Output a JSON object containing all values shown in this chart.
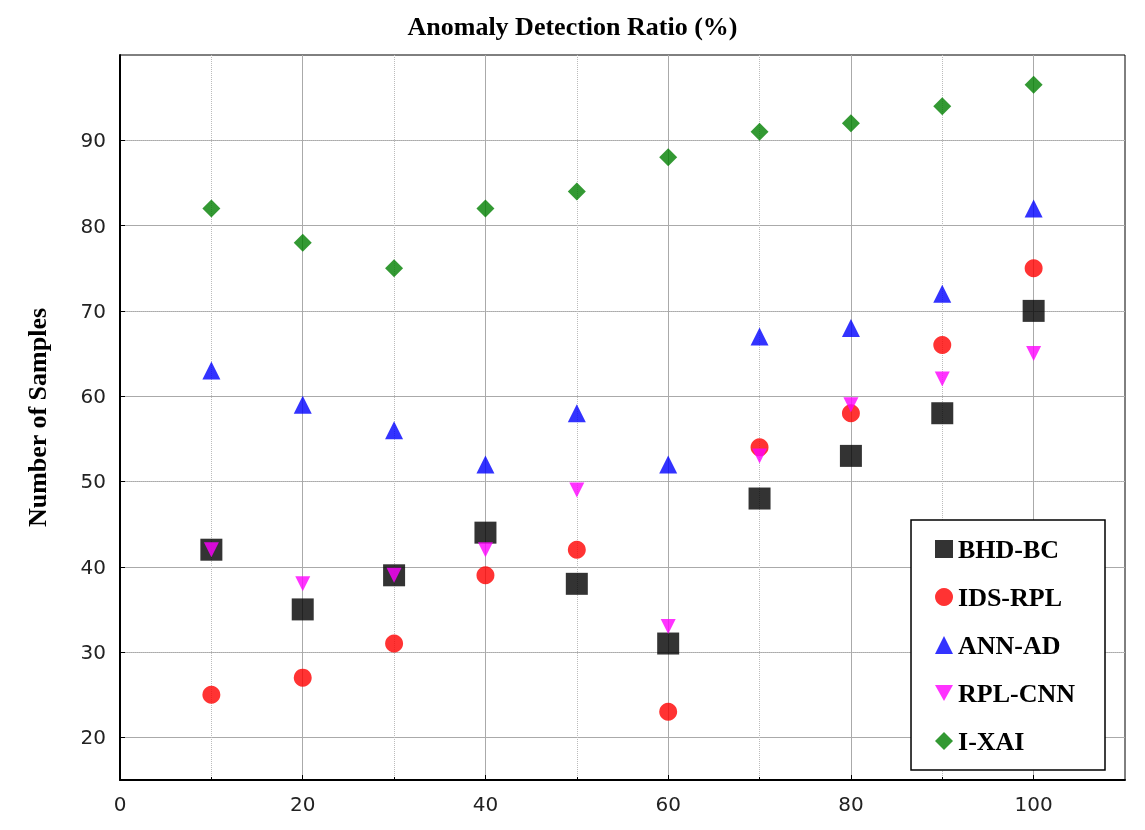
{
  "chart_data": {
    "type": "scatter",
    "xlabel": "Anomaly Detection Ratio (%)",
    "ylabel": "Number of Samples",
    "x": [
      10,
      20,
      30,
      40,
      50,
      60,
      70,
      80,
      90,
      100
    ],
    "series": [
      {
        "name": "BHD-BC",
        "color": "#000000",
        "marker": "square",
        "values": [
          42,
          35,
          39,
          44,
          38,
          31,
          48,
          53,
          58,
          70
        ]
      },
      {
        "name": "IDS-RPL",
        "color": "#ff0000",
        "marker": "circle",
        "values": [
          25,
          27,
          31,
          39,
          42,
          23,
          54,
          58,
          66,
          75
        ]
      },
      {
        "name": "ANN-AD",
        "color": "#0000ff",
        "marker": "triangle",
        "values": [
          63,
          59,
          56,
          52,
          58,
          52,
          67,
          68,
          72,
          82
        ]
      },
      {
        "name": "RPL-CNN",
        "color": "#ff00ff",
        "marker": "triangle-down",
        "values": [
          42,
          38,
          39,
          42,
          49,
          33,
          53,
          59,
          62,
          65
        ]
      },
      {
        "name": "I-XAI",
        "color": "#008000",
        "marker": "diamond",
        "values": [
          82,
          78,
          75,
          82,
          84,
          88,
          91,
          92,
          94,
          96.5
        ]
      }
    ],
    "xlim": [
      0,
      110
    ],
    "xticks": [
      0,
      20,
      40,
      60,
      80,
      100
    ],
    "ylim": [
      15,
      100
    ],
    "yticks": [
      20,
      30,
      40,
      50,
      60,
      70,
      80,
      90
    ],
    "grid": true,
    "legend": "bottom right"
  }
}
